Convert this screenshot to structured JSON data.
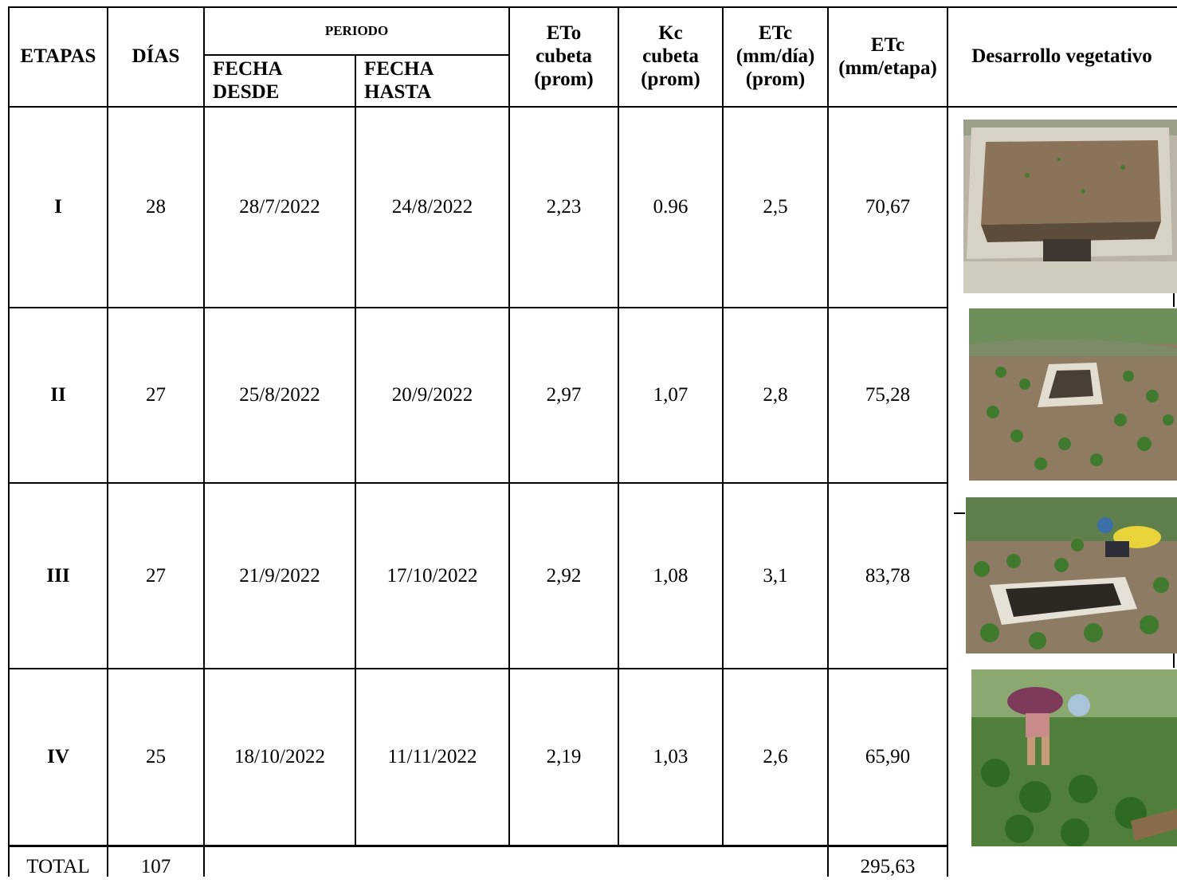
{
  "header": {
    "etapas": "ETAPAS",
    "dias": "DÍAS",
    "periodo": "PERIODO",
    "fecha_desde": "FECHA DESDE",
    "fecha_hasta": "FECHA HASTA",
    "eto_1": "ETo",
    "eto_2": "cubeta",
    "eto_3": "(prom)",
    "kc_1": "Kc",
    "kc_2": "cubeta",
    "kc_3": "(prom)",
    "etc_dia_1": "ETc",
    "etc_dia_2": "(mm/día)",
    "etc_dia_3": "(prom)",
    "etc_etapa_1": "ETc",
    "etc_etapa_2": "(mm/etapa)",
    "desarrollo": "Desarrollo vegetativo"
  },
  "rows": [
    {
      "etapa": "I",
      "dias": "28",
      "desde": "28/7/2022",
      "hasta": "24/8/2022",
      "eto": "2,23",
      "kc": "0.96",
      "etc_dia": "2,5",
      "etc_etapa": "70,67",
      "photo": "photo-empty-plot"
    },
    {
      "etapa": "II",
      "dias": "27",
      "desde": "25/8/2022",
      "hasta": "20/9/2022",
      "eto": "2,97",
      "kc": "1,07",
      "etc_dia": "2,8",
      "etc_etapa": "75,28",
      "photo": "photo-seedlings"
    },
    {
      "etapa": "III",
      "dias": "27",
      "desde": "21/9/2022",
      "hasta": "17/10/2022",
      "eto": "2,92",
      "kc": "1,08",
      "etc_dia": "3,1",
      "etc_etapa": "83,78",
      "photo": "photo-person-crouching"
    },
    {
      "etapa": "IV",
      "dias": "25",
      "desde": "18/10/2022",
      "hasta": "11/11/2022",
      "eto": "2,19",
      "kc": "1,03",
      "etc_dia": "2,6",
      "etc_etapa": "65,90",
      "photo": "photo-person-bending"
    }
  ],
  "total": {
    "label": "TOTAL",
    "dias": "107",
    "etc_etapa": "295,63"
  },
  "colors": {
    "grid": "#000000",
    "soil": "#8a7358",
    "foliage": "#3f7a2e",
    "concrete": "#c9c6bb"
  }
}
